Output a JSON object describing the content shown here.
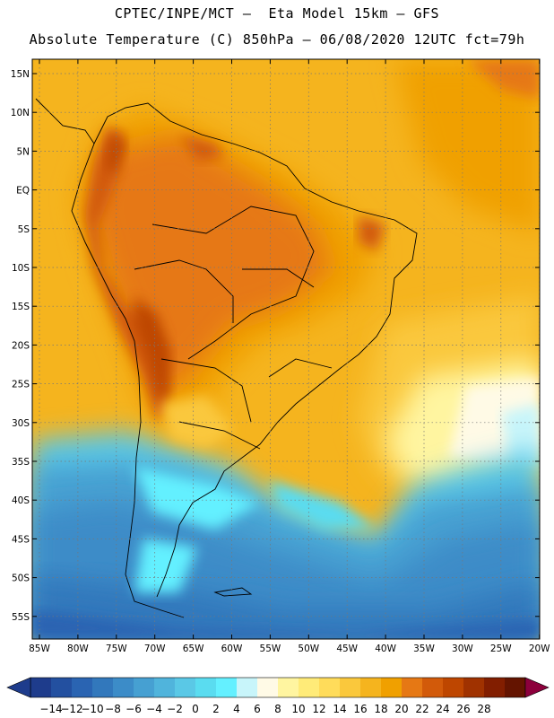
{
  "header": {
    "line1": "CPTEC/INPE/MCT –  Eta Model 15km – GFS",
    "line2": "Absolute Temperature (C) 850hPa – 06/08/2020 12UTC fct=79h"
  },
  "map": {
    "lat_labels": [
      "15N",
      "10N",
      "5N",
      "EQ",
      "5S",
      "10S",
      "15S",
      "20S",
      "25S",
      "30S",
      "35S",
      "40S",
      "45S",
      "50S",
      "55S"
    ],
    "lon_labels": [
      "85W",
      "80W",
      "75W",
      "70W",
      "65W",
      "60W",
      "55W",
      "50W",
      "45W",
      "40W",
      "35W",
      "30W",
      "25W",
      "20W"
    ],
    "grid": true
  },
  "colorbar": {
    "ticks": [
      "−14",
      "−12",
      "−10",
      "−8",
      "−6",
      "−4",
      "−2",
      "0",
      "2",
      "4",
      "6",
      "8",
      "10",
      "12",
      "14",
      "16",
      "18",
      "20",
      "22",
      "24",
      "26",
      "28"
    ],
    "colors": [
      "#1e3c8c",
      "#2350a0",
      "#2a64b2",
      "#3278bc",
      "#3c8cc8",
      "#46a0d2",
      "#50b4dc",
      "#5ac8e6",
      "#5adcf0",
      "#64f0ff",
      "#c8f5fa",
      "#fffae6",
      "#fff5a0",
      "#ffeb78",
      "#ffdc5a",
      "#fac83c",
      "#f5b41e",
      "#f0a000",
      "#e67814",
      "#d25a0a",
      "#be4600",
      "#a03200",
      "#821e00",
      "#641400"
    ],
    "low_arrow_color": "#1e3c8c",
    "high_arrow_color": "#8c003c"
  }
}
